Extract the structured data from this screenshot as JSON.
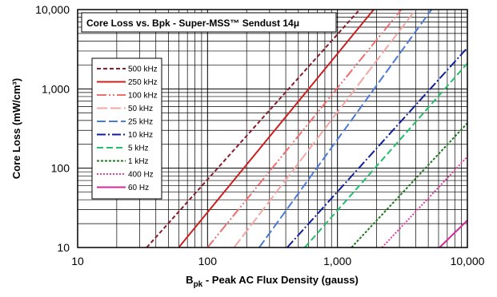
{
  "chart_data": {
    "type": "line",
    "title": "Core Loss vs. Bpk - Super-MSS™ Sendust  14μ",
    "xlabel": {
      "main": "B",
      "sub": "pk",
      "rest": " - Peak AC Flux Density (gauss)"
    },
    "ylabel": "Core Loss (mW/cm³)",
    "x_scale": "log",
    "y_scale": "log",
    "xlim": [
      10,
      10000
    ],
    "ylim": [
      10,
      10000
    ],
    "x_ticks": [
      {
        "value": 10,
        "label": "10"
      },
      {
        "value": 100,
        "label": "100"
      },
      {
        "value": 1000,
        "label": "1,000"
      },
      {
        "value": 10000,
        "label": "10,000"
      }
    ],
    "y_ticks": [
      {
        "value": 10,
        "label": "10"
      },
      {
        "value": 100,
        "label": "100"
      },
      {
        "value": 1000,
        "label": "1,000"
      },
      {
        "value": 10000,
        "label": "10,000"
      }
    ],
    "grid": true,
    "legend_position": "left",
    "series": [
      {
        "name": "500 kHz",
        "color": "#8b1a2b",
        "dash": "5,3",
        "x": [
          34,
          1480
        ],
        "y": [
          10,
          10000
        ]
      },
      {
        "name": "250 kHz",
        "color": "#cc1f1f",
        "dash": "",
        "x": [
          60,
          1900
        ],
        "y": [
          10,
          10000
        ]
      },
      {
        "name": "100 kHz",
        "color": "#f06e6e",
        "dash": "12,3,2,3,2,3",
        "x": [
          100,
          3100
        ],
        "y": [
          10,
          10000
        ]
      },
      {
        "name": "50 kHz",
        "color": "#f4a7a0",
        "dash": "13,4",
        "x": [
          160,
          4000
        ],
        "y": [
          10,
          10000
        ]
      },
      {
        "name": "25 kHz",
        "color": "#4a7bd8",
        "dash": "11,4",
        "x": [
          250,
          5300
        ],
        "y": [
          10,
          10000
        ]
      },
      {
        "name": "10 kHz",
        "color": "#0d1f9e",
        "dash": "11,3,2,3",
        "x": [
          410,
          10000
        ],
        "y": [
          10,
          3300
        ]
      },
      {
        "name": "5 kHz",
        "color": "#22c06a",
        "dash": "8,4",
        "x": [
          560,
          10000
        ],
        "y": [
          10,
          2100
        ]
      },
      {
        "name": "1 kHz",
        "color": "#1f7a1f",
        "dash": "3,2",
        "x": [
          1280,
          10000
        ],
        "y": [
          10,
          370
        ]
      },
      {
        "name": "400 Hz",
        "color": "#e83a9e",
        "dash": "2,2",
        "x": [
          2200,
          10000
        ],
        "y": [
          10,
          140
        ]
      },
      {
        "name": "60 Hz",
        "color": "#d12a9a",
        "dash": "",
        "x": [
          6100,
          10000
        ],
        "y": [
          10,
          22
        ]
      }
    ]
  }
}
